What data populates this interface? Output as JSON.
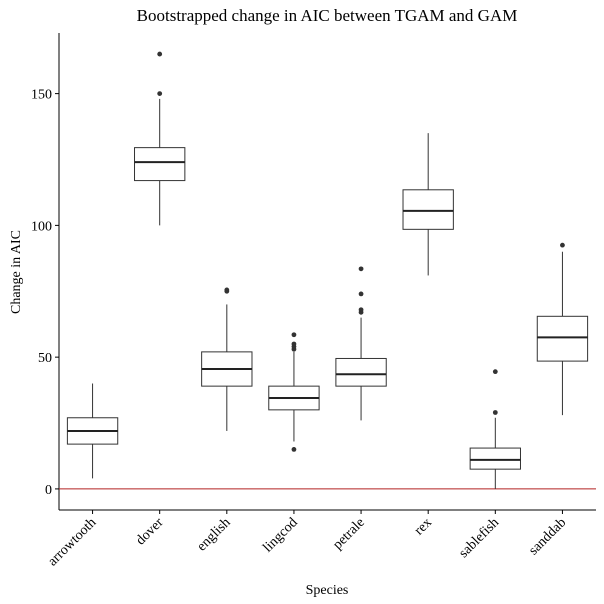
{
  "chart_data": {
    "type": "box",
    "title": "Bootstrapped change in AIC between TGAM and GAM",
    "xlabel": "Species",
    "ylabel": "Change in AIC",
    "ylim": [
      -8,
      173
    ],
    "yticks": [
      0,
      50,
      100,
      150
    ],
    "ytick_labels": [
      "0",
      "50",
      "100",
      "150"
    ],
    "reference_line": {
      "y": 0,
      "color": "#b22222"
    },
    "grid": false,
    "categories": [
      "arrowtooth",
      "dover",
      "english",
      "lingcod",
      "petrale",
      "rex",
      "sablefish",
      "sanddab"
    ],
    "boxes": [
      {
        "category": "arrowtooth",
        "whisker_low": 4,
        "q1": 17,
        "median": 22,
        "q3": 27,
        "whisker_high": 40,
        "outliers": []
      },
      {
        "category": "dover",
        "whisker_low": 100,
        "q1": 117,
        "median": 124,
        "q3": 129.5,
        "whisker_high": 148,
        "outliers": [
          150,
          165
        ]
      },
      {
        "category": "english",
        "whisker_low": 22,
        "q1": 39,
        "median": 45.5,
        "q3": 52,
        "whisker_high": 70,
        "outliers": [
          75,
          75.5
        ]
      },
      {
        "category": "lingcod",
        "whisker_low": 18,
        "q1": 30,
        "median": 34.5,
        "q3": 39,
        "whisker_high": 52,
        "outliers": [
          15,
          53,
          54,
          55,
          58.5
        ]
      },
      {
        "category": "petrale",
        "whisker_low": 26,
        "q1": 39,
        "median": 43.5,
        "q3": 49.5,
        "whisker_high": 65,
        "outliers": [
          67,
          68,
          74,
          83.5
        ]
      },
      {
        "category": "rex",
        "whisker_low": 81,
        "q1": 98.5,
        "median": 105.5,
        "q3": 113.5,
        "whisker_high": 135,
        "outliers": []
      },
      {
        "category": "sablefish",
        "whisker_low": 0,
        "q1": 7.5,
        "median": 11,
        "q3": 15.5,
        "whisker_high": 27,
        "outliers": [
          29,
          44.5
        ]
      },
      {
        "category": "sanddab",
        "whisker_low": 28,
        "q1": 48.5,
        "median": 57.5,
        "q3": 65.5,
        "whisker_high": 90,
        "outliers": [
          92.5
        ]
      }
    ]
  }
}
